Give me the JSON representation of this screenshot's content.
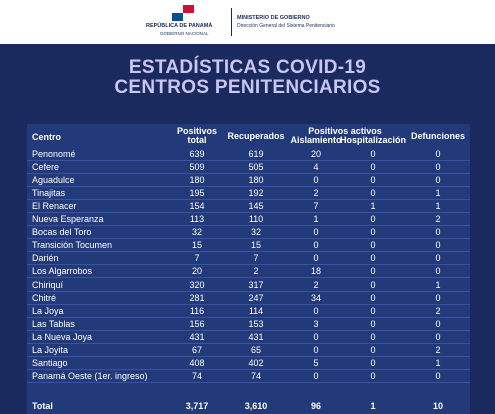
{
  "header": {
    "country": "REPÚBLICA DE PANAMÁ",
    "government": "GOBIERNO NACIONAL",
    "ministry": "MINISTERIO DE GOBIERNO",
    "directorate": "Dirección General del Sistema Penitenciario"
  },
  "title": {
    "line1": "ESTADÍSTICAS COVID-19",
    "line2": "CENTROS PENITENCIARIOS"
  },
  "table": {
    "group_header": "Positivos activos",
    "columns": [
      "Centro",
      "Positivos total",
      "Recuperados",
      "Aislamiento",
      "Hospitalización",
      "Defunciones"
    ],
    "rows": [
      [
        "Penonomé",
        639,
        619,
        20,
        0,
        0
      ],
      [
        "Cefere",
        509,
        505,
        4,
        0,
        0
      ],
      [
        "Aguadulce",
        180,
        180,
        0,
        0,
        0
      ],
      [
        "Tinajitas",
        195,
        192,
        2,
        0,
        1
      ],
      [
        "El Renacer",
        154,
        145,
        7,
        1,
        1
      ],
      [
        "Nueva Esperanza",
        113,
        110,
        1,
        0,
        2
      ],
      [
        "Bocas del Toro",
        32,
        32,
        0,
        0,
        0
      ],
      [
        "Transición Tocumen",
        15,
        15,
        0,
        0,
        0
      ],
      [
        "Darién",
        7,
        7,
        0,
        0,
        0
      ],
      [
        "Los Algarrobos",
        20,
        2,
        18,
        0,
        0
      ],
      [
        "Chiriquí",
        320,
        317,
        2,
        0,
        1
      ],
      [
        "Chitré",
        281,
        247,
        34,
        0,
        0
      ],
      [
        "La Joya",
        116,
        114,
        0,
        0,
        2
      ],
      [
        "Las Tablas",
        156,
        153,
        3,
        0,
        0
      ],
      [
        "La Nueva Joya",
        431,
        431,
        0,
        0,
        0
      ],
      [
        "La Joyita",
        67,
        65,
        0,
        0,
        2
      ],
      [
        "Santiago",
        408,
        402,
        5,
        0,
        1
      ],
      [
        "Panamá Oeste (1er. ingreso)",
        74,
        74,
        0,
        0,
        0
      ]
    ],
    "total": [
      "Total",
      "3,717",
      "3,610",
      96,
      1,
      10
    ]
  }
}
